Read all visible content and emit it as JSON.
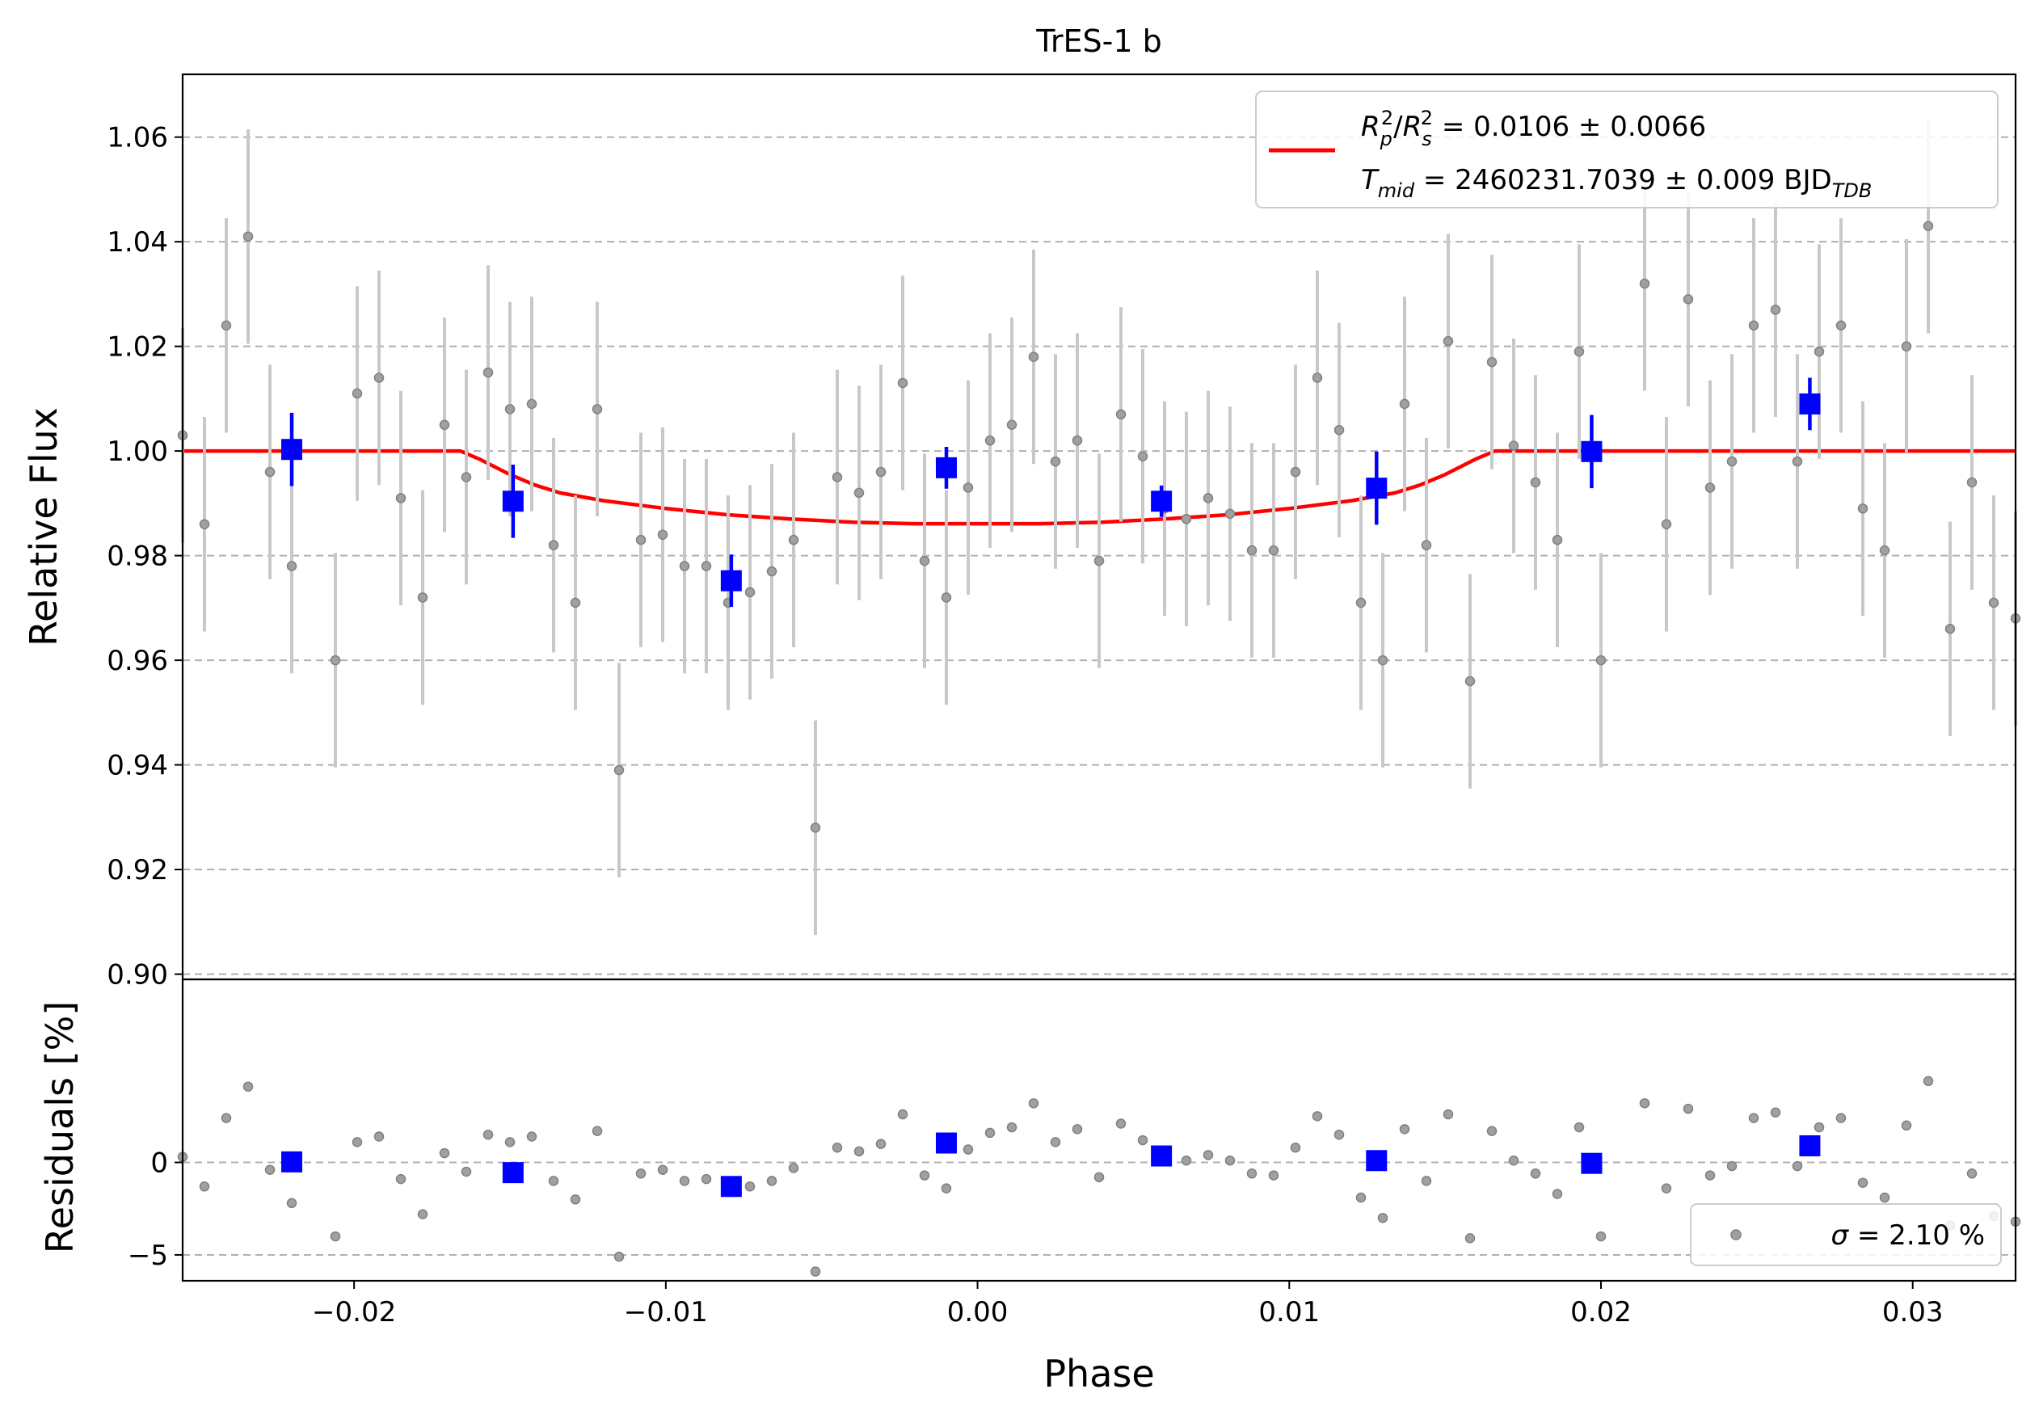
{
  "chart_data": [
    {
      "panel": "top",
      "type": "scatter",
      "title": "TrES-1 b",
      "xlabel": "",
      "ylabel": "Relative Flux",
      "xlim": [
        -0.0255,
        0.0333
      ],
      "ylim": [
        0.899,
        1.072
      ],
      "grid": "horizontal dashed",
      "yticks": [
        "0.90",
        "0.92",
        "0.94",
        "0.96",
        "0.98",
        "1.00",
        "1.02",
        "1.04",
        "1.06"
      ],
      "legend": {
        "placement": "top-right",
        "line_color": "#ff0000",
        "line1": {
          "R": "R",
          "p": "p",
          "s": "s",
          "sup": "2",
          "slash": "/",
          "value": " = 0.0106 ± 0.0066"
        },
        "line2": {
          "T": "T",
          "mid": "mid",
          "value": " = 2460231.7039 ± 0.009 BJD",
          "tdb": "TDB"
        }
      },
      "series": [
        {
          "name": "data",
          "color": "#808080",
          "x": [
            -0.0255,
            -0.0248,
            -0.0241,
            -0.0234,
            -0.0227,
            -0.022,
            -0.0206,
            -0.0199,
            -0.0192,
            -0.0185,
            -0.0178,
            -0.0171,
            -0.0164,
            -0.0157,
            -0.015,
            -0.0143,
            -0.0136,
            -0.0129,
            -0.0122,
            -0.0115,
            -0.0108,
            -0.0101,
            -0.0094,
            -0.0087,
            -0.008,
            -0.0073,
            -0.0066,
            -0.0059,
            -0.0052,
            -0.0045,
            -0.0038,
            -0.0031,
            -0.0024,
            -0.0017,
            -0.001,
            -0.0003,
            0.0004,
            0.0011,
            0.0018,
            0.0025,
            0.0032,
            0.0039,
            0.0046,
            0.0053,
            0.006,
            0.0067,
            0.0074,
            0.0081,
            0.0088,
            0.0095,
            0.0102,
            0.0109,
            0.0116,
            0.0123,
            0.013,
            0.0137,
            0.0144,
            0.0151,
            0.0158,
            0.0165,
            0.0172,
            0.0179,
            0.0186,
            0.0193,
            0.02,
            0.0214,
            0.0221,
            0.0228,
            0.0235,
            0.0242,
            0.0249,
            0.0256,
            0.0263,
            0.027,
            0.0277,
            0.0284,
            0.0291,
            0.0298,
            0.0305,
            0.0312,
            0.0319,
            0.0326,
            0.0333
          ],
          "y": [
            1.003,
            0.986,
            1.024,
            1.041,
            0.996,
            0.978,
            0.96,
            1.011,
            1.014,
            0.991,
            0.972,
            1.005,
            0.995,
            1.015,
            1.008,
            1.009,
            0.982,
            0.971,
            1.008,
            0.939,
            0.983,
            0.984,
            0.978,
            0.978,
            0.971,
            0.973,
            0.977,
            0.983,
            0.928,
            0.995,
            0.992,
            0.996,
            1.013,
            0.979,
            0.972,
            0.993,
            1.002,
            1.005,
            1.018,
            0.998,
            1.002,
            0.979,
            1.007,
            0.999,
            0.989,
            0.987,
            0.991,
            0.988,
            0.981,
            0.981,
            0.996,
            1.014,
            1.004,
            0.971,
            0.96,
            1.009,
            0.982,
            1.021,
            0.956,
            1.017,
            1.001,
            0.994,
            0.983,
            1.019,
            0.96,
            1.032,
            0.986,
            1.029,
            0.993,
            0.998,
            1.024,
            1.027,
            0.998,
            1.019,
            1.024,
            0.989,
            0.981,
            1.02,
            1.043,
            0.966,
            0.994,
            0.971,
            0.968
          ],
          "yerr": 0.0205
        },
        {
          "name": "binned",
          "color": "#0000ff",
          "x": [
            -0.022,
            -0.0149,
            -0.0079,
            -0.001,
            0.0059,
            0.0128,
            0.0197,
            0.0267
          ],
          "y": [
            1.0003,
            0.9904,
            0.9752,
            0.9968,
            0.9904,
            0.9929,
            0.9999,
            1.009
          ],
          "yerr": [
            0.007,
            0.007,
            0.005,
            0.004,
            0.003,
            0.007,
            0.007,
            0.005
          ]
        },
        {
          "name": "transit model",
          "color": "#ff0000",
          "x": [
            -0.0255,
            -0.0166,
            -0.016,
            -0.015,
            -0.0142,
            -0.0134,
            -0.012,
            -0.01,
            -0.008,
            -0.006,
            -0.004,
            -0.002,
            0.0,
            0.002,
            0.004,
            0.006,
            0.008,
            0.01,
            0.012,
            0.0134,
            0.0142,
            0.015,
            0.016,
            0.0166,
            0.0333
          ],
          "y": [
            1.0,
            1.0,
            0.9985,
            0.9955,
            0.9935,
            0.992,
            0.9905,
            0.989,
            0.9878,
            0.987,
            0.9864,
            0.9861,
            0.9861,
            0.9861,
            0.9864,
            0.987,
            0.9878,
            0.989,
            0.9905,
            0.992,
            0.9935,
            0.9955,
            0.9985,
            1.0,
            1.0
          ]
        }
      ]
    },
    {
      "panel": "bottom",
      "type": "scatter",
      "title": "",
      "xlabel": "Phase",
      "ylabel": "Residuals [%]",
      "xlim": [
        -0.0255,
        0.0333
      ],
      "ylim": [
        -6.4,
        9.9
      ],
      "grid": "horizontal dashed",
      "xticks": [
        "−0.02",
        "−0.01",
        "0.00",
        "0.01",
        "0.02",
        "0.03"
      ],
      "xtick_values": [
        -0.02,
        -0.01,
        0.0,
        0.01,
        0.02,
        0.03
      ],
      "yticks": [
        "−5",
        "0"
      ],
      "ytick_values": [
        -5,
        0
      ],
      "legend": {
        "placement": "bottom-right",
        "label": "σ = 2.10 %",
        "sigma": "σ",
        "value": " = 2.10 %"
      },
      "series": [
        {
          "name": "residuals",
          "color": "#808080",
          "x": [
            -0.0255,
            -0.0248,
            -0.0241,
            -0.0234,
            -0.0227,
            -0.022,
            -0.0206,
            -0.0199,
            -0.0192,
            -0.0185,
            -0.0178,
            -0.0171,
            -0.0164,
            -0.0157,
            -0.015,
            -0.0143,
            -0.0136,
            -0.0129,
            -0.0122,
            -0.0115,
            -0.0108,
            -0.0101,
            -0.0094,
            -0.0087,
            -0.008,
            -0.0073,
            -0.0066,
            -0.0059,
            -0.0052,
            -0.0045,
            -0.0038,
            -0.0031,
            -0.0024,
            -0.0017,
            -0.001,
            -0.0003,
            0.0004,
            0.0011,
            0.0018,
            0.0025,
            0.0032,
            0.0039,
            0.0046,
            0.0053,
            0.006,
            0.0067,
            0.0074,
            0.0081,
            0.0088,
            0.0095,
            0.0102,
            0.0109,
            0.0116,
            0.0123,
            0.013,
            0.0137,
            0.0144,
            0.0151,
            0.0158,
            0.0165,
            0.0172,
            0.0179,
            0.0186,
            0.0193,
            0.02,
            0.0214,
            0.0221,
            0.0228,
            0.0235,
            0.0242,
            0.0249,
            0.0256,
            0.0263,
            0.027,
            0.0277,
            0.0284,
            0.0291,
            0.0298,
            0.0305,
            0.0312,
            0.0319,
            0.0326,
            0.0333
          ],
          "y": [
            0.3,
            -1.3,
            2.4,
            4.1,
            -0.4,
            -2.2,
            -4.0,
            1.1,
            1.4,
            -0.9,
            -2.8,
            0.5,
            -0.5,
            1.5,
            1.1,
            1.4,
            -1.0,
            -2.0,
            1.7,
            -5.1,
            -0.6,
            -0.4,
            -1.0,
            -0.9,
            -1.6,
            -1.3,
            -1.0,
            -0.3,
            -5.9,
            0.8,
            0.6,
            1.0,
            2.6,
            -0.7,
            -1.4,
            0.7,
            1.6,
            1.9,
            3.2,
            1.1,
            1.8,
            -0.8,
            2.1,
            1.2,
            0.3,
            0.1,
            0.4,
            0.1,
            -0.6,
            -0.7,
            0.8,
            2.5,
            1.5,
            -1.9,
            -3.0,
            1.8,
            -1.0,
            2.6,
            -4.1,
            1.7,
            0.1,
            -0.6,
            -1.7,
            1.9,
            -4.0,
            3.2,
            -1.4,
            2.9,
            -0.7,
            -0.2,
            2.4,
            2.7,
            -0.2,
            1.9,
            2.4,
            -1.1,
            -1.9,
            2.0,
            4.4,
            -3.4,
            -0.6,
            -2.9,
            -3.2
          ]
        },
        {
          "name": "binned residuals",
          "color": "#0000ff",
          "x": [
            -0.022,
            -0.0149,
            -0.0079,
            -0.001,
            0.0059,
            0.0128,
            0.0197,
            0.0267
          ],
          "y": [
            0.03,
            -0.55,
            -1.3,
            1.05,
            0.35,
            0.1,
            -0.05,
            0.9
          ]
        }
      ]
    }
  ]
}
